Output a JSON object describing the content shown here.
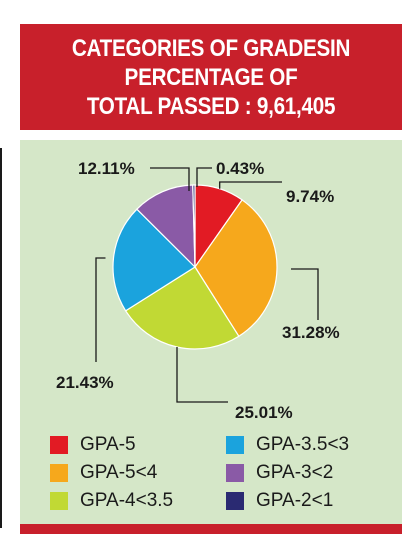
{
  "header": {
    "line1": "CATEGORIES OF GRADESIN",
    "line2": "PERCENTAGE OF",
    "line3": "TOTAL PASSED : 9,61,405"
  },
  "chart_data": {
    "type": "pie",
    "title": "CATEGORIES OF GRADESIN PERCENTAGE OF TOTAL PASSED : 9,61,405",
    "slices": [
      {
        "name": "GPA-5",
        "value": 9.74,
        "label": "9.74%",
        "color": "#e21b24"
      },
      {
        "name": "GPA-5<4",
        "value": 31.28,
        "label": "31.28%",
        "color": "#f6a81c"
      },
      {
        "name": "GPA-4<3.5",
        "value": 25.01,
        "label": "25.01%",
        "color": "#c1d934"
      },
      {
        "name": "GPA-3.5<3",
        "value": 21.43,
        "label": "21.43%",
        "color": "#1ba3dd"
      },
      {
        "name": "GPA-3<2",
        "value": 12.11,
        "label": "12.11%",
        "color": "#8a5aa6"
      },
      {
        "name": "GPA-2<1",
        "value": 0.43,
        "label": "0.43%",
        "color": "#2a2a72"
      }
    ],
    "legend": [
      "GPA-5",
      "GPA-3.5<3",
      "GPA-5<4",
      "GPA-3<2",
      "GPA-4<3.5",
      "GPA-2<1"
    ],
    "legend_position": "bottom"
  }
}
